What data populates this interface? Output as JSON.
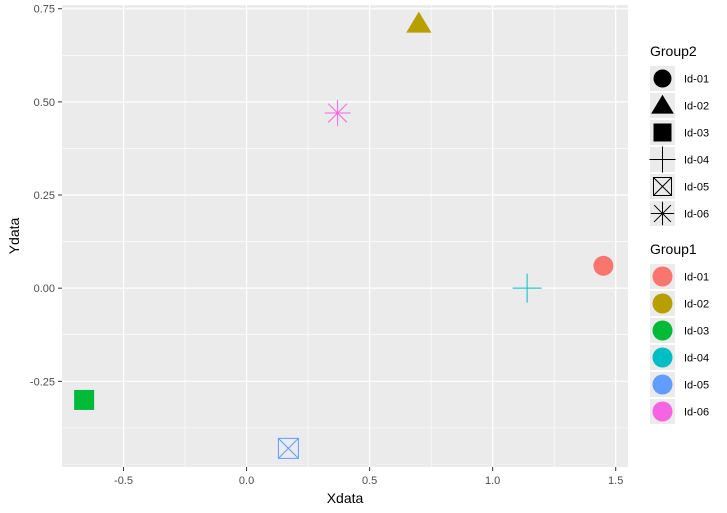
{
  "chart_data": {
    "type": "scatter",
    "xlabel": "Xdata",
    "ylabel": "Ydata",
    "xlim": [
      -0.75,
      1.55
    ],
    "ylim": [
      -0.48,
      0.76
    ],
    "xticks": [
      -0.5,
      0.0,
      0.5,
      1.0,
      1.5
    ],
    "xtick_labels": [
      "-0.5",
      "0.0",
      "0.5",
      "1.0",
      "1.5"
    ],
    "yticks": [
      -0.25,
      0.0,
      0.25,
      0.5,
      0.75
    ],
    "ytick_labels": [
      "-0.25",
      "0.00",
      "0.25",
      "0.50",
      "0.75"
    ],
    "grid": true,
    "background": "#ebebeb",
    "legend_placement": "right",
    "points": [
      {
        "x": 1.45,
        "y": 0.06,
        "group1": "Id-01",
        "group2": "Id-01"
      },
      {
        "x": 0.7,
        "y": 0.71,
        "group1": "Id-02",
        "group2": "Id-02"
      },
      {
        "x": -0.66,
        "y": -0.3,
        "group1": "Id-03",
        "group2": "Id-03"
      },
      {
        "x": 1.14,
        "y": 0.0,
        "group1": "Id-04",
        "group2": "Id-04"
      },
      {
        "x": 0.17,
        "y": -0.43,
        "group1": "Id-05",
        "group2": "Id-05"
      },
      {
        "x": 0.37,
        "y": 0.47,
        "group1": "Id-06",
        "group2": "Id-06"
      }
    ],
    "legends": [
      {
        "title": "Group2",
        "aesthetic": "shape",
        "entries": [
          {
            "label": "Id-01",
            "shape": "circle"
          },
          {
            "label": "Id-02",
            "shape": "triangle"
          },
          {
            "label": "Id-03",
            "shape": "square"
          },
          {
            "label": "Id-04",
            "shape": "plus"
          },
          {
            "label": "Id-05",
            "shape": "square-cross"
          },
          {
            "label": "Id-06",
            "shape": "asterisk"
          }
        ]
      },
      {
        "title": "Group1",
        "aesthetic": "color",
        "entries": [
          {
            "label": "Id-01",
            "color": "#f8766d"
          },
          {
            "label": "Id-02",
            "color": "#b79f00"
          },
          {
            "label": "Id-03",
            "color": "#00ba38"
          },
          {
            "label": "Id-04",
            "color": "#00bfc4"
          },
          {
            "label": "Id-05",
            "color": "#619cff"
          },
          {
            "label": "Id-06",
            "color": "#f564e3"
          }
        ]
      }
    ]
  }
}
